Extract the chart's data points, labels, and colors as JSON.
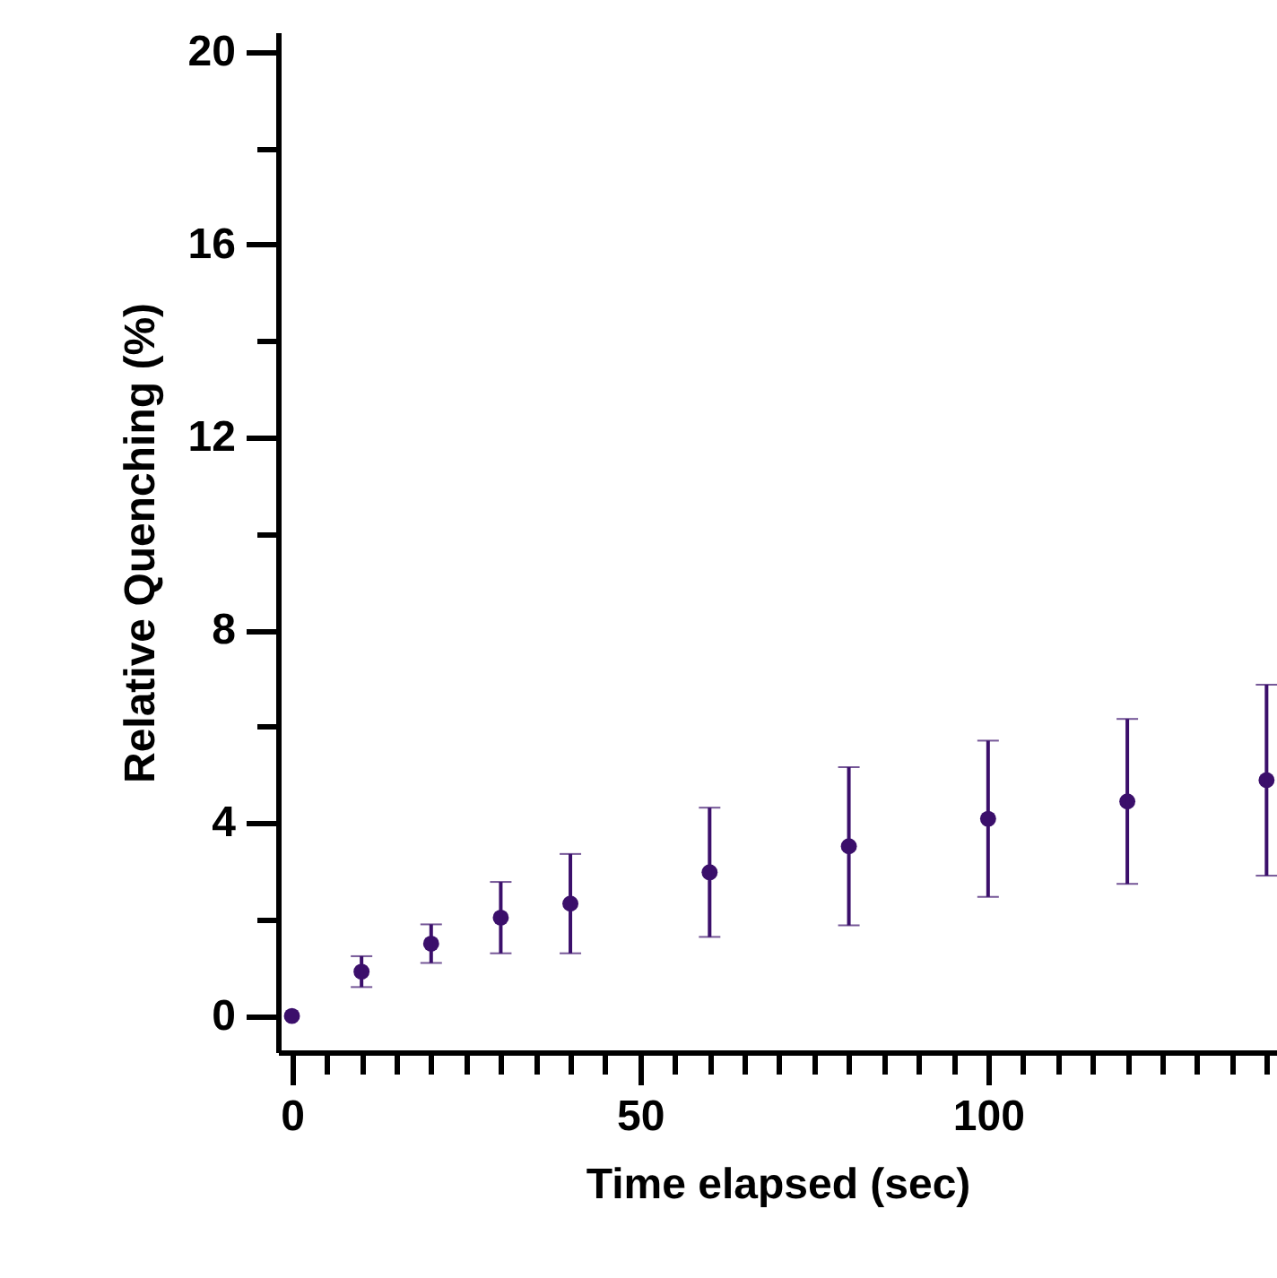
{
  "chart_data": {
    "type": "scatter",
    "xlabel": "Time elapsed (sec)",
    "ylabel": "Relative Quenching (%)",
    "x": [
      0,
      10,
      20,
      30,
      40,
      60,
      80,
      100,
      120,
      140
    ],
    "values": [
      0,
      0.92,
      1.5,
      2.04,
      2.33,
      2.98,
      3.52,
      4.09,
      4.45,
      4.89
    ],
    "errors": [
      null,
      0.32,
      0.4,
      0.74,
      1.03,
      1.34,
      1.64,
      1.62,
      1.71,
      1.98
    ],
    "color": "#3b0f6b",
    "marker": "circle",
    "xlim": [
      -2,
      141.5
    ],
    "ylim": [
      -0.75,
      20.4
    ],
    "xticks": [
      0,
      {
        "value": 5,
        "label": null
      },
      {
        "value": 10,
        "label": null
      },
      {
        "value": 15,
        "label": null
      },
      {
        "value": 20,
        "label": null
      },
      {
        "value": 25,
        "label": null
      },
      {
        "value": 30,
        "label": null
      },
      {
        "value": 35,
        "label": null
      },
      {
        "value": 40,
        "label": null
      },
      {
        "value": 45,
        "label": null
      },
      50,
      {
        "value": 55,
        "label": null
      },
      {
        "value": 60,
        "label": null
      },
      {
        "value": 65,
        "label": null
      },
      {
        "value": 70,
        "label": null
      },
      {
        "value": 75,
        "label": null
      },
      {
        "value": 80,
        "label": null
      },
      {
        "value": 85,
        "label": null
      },
      {
        "value": 90,
        "label": null
      },
      {
        "value": 95,
        "label": null
      },
      100,
      {
        "value": 105,
        "label": null
      },
      {
        "value": 110,
        "label": null
      },
      {
        "value": 115,
        "label": null
      },
      {
        "value": 120,
        "label": null
      },
      {
        "value": 125,
        "label": null
      },
      {
        "value": 130,
        "label": null
      },
      {
        "value": 135,
        "label": null
      },
      {
        "value": 140,
        "label": null
      }
    ],
    "yticks": [
      0,
      {
        "value": 2,
        "label": null
      },
      4,
      {
        "value": 6,
        "label": null
      },
      8,
      {
        "value": 10,
        "label": null
      },
      12,
      {
        "value": 14,
        "label": null
      },
      16,
      {
        "value": 18,
        "label": null
      },
      20
    ],
    "grid": false
  }
}
